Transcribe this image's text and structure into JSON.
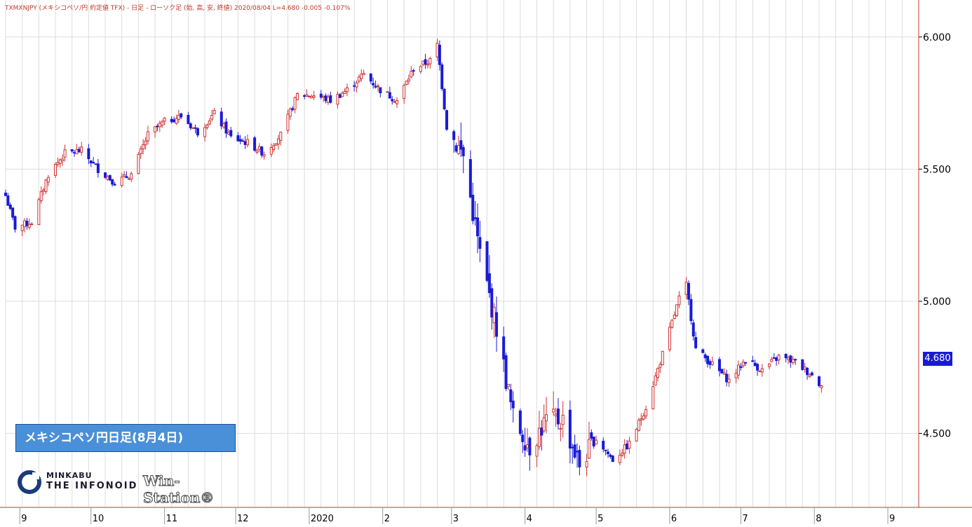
{
  "header": "TXMXNJPY (メキシコペソ/円 約定値 TFX) - 日足 - ローソク足 (始, 高, 安, 終値)  2020/08/04 L=4.680 -0.005  -0.107%",
  "badge_title": "メキシコペソ円日足(8月4日)",
  "logo": {
    "minkabu": "MINKABU",
    "infonoid": "THE INFONOID",
    "winstation": "Win-Station®",
    "icon": "minkabu-logo-icon"
  },
  "last_price_label": "4.680",
  "colors": {
    "up": "#d03030",
    "down": "#1a1ad6",
    "grid": "#dddddd",
    "header": "#c0392b"
  },
  "chart_data": {
    "type": "candlestick",
    "title": "",
    "xlabel": "",
    "ylabel": "",
    "ylim": [
      4.22,
      6.14
    ],
    "yticks": [
      "6.000",
      "5.500",
      "5.000",
      "4.500"
    ],
    "ytick_values": [
      6.0,
      5.5,
      5.0,
      4.5
    ],
    "x_range": [
      "2019-08-26",
      "2020-09-14"
    ],
    "xticks": [
      {
        "date": "2019-09-01",
        "label": "9"
      },
      {
        "date": "2019-10-01",
        "label": "10"
      },
      {
        "date": "2019-11-01",
        "label": "11"
      },
      {
        "date": "2019-12-01",
        "label": "12"
      },
      {
        "date": "2020-01-01",
        "label": "2020"
      },
      {
        "date": "2020-02-01",
        "label": "2"
      },
      {
        "date": "2020-03-01",
        "label": "3"
      },
      {
        "date": "2020-04-01",
        "label": "4"
      },
      {
        "date": "2020-05-01",
        "label": "5"
      },
      {
        "date": "2020-06-01",
        "label": "6"
      },
      {
        "date": "2020-07-01",
        "label": "7"
      },
      {
        "date": "2020-08-01",
        "label": "8"
      },
      {
        "date": "2020-09-01",
        "label": "9"
      }
    ],
    "grid": true,
    "close_anchors": [
      [
        "2019-08-26",
        5.4
      ],
      [
        "2019-08-30",
        5.28
      ],
      [
        "2019-09-06",
        5.3
      ],
      [
        "2019-09-13",
        5.48
      ],
      [
        "2019-09-20",
        5.56
      ],
      [
        "2019-09-27",
        5.57
      ],
      [
        "2019-10-04",
        5.5
      ],
      [
        "2019-10-11",
        5.45
      ],
      [
        "2019-10-18",
        5.48
      ],
      [
        "2019-10-25",
        5.63
      ],
      [
        "2019-11-01",
        5.68
      ],
      [
        "2019-11-08",
        5.7
      ],
      [
        "2019-11-15",
        5.64
      ],
      [
        "2019-11-22",
        5.71
      ],
      [
        "2019-11-29",
        5.62
      ],
      [
        "2019-12-06",
        5.6
      ],
      [
        "2019-12-13",
        5.56
      ],
      [
        "2019-12-20",
        5.63
      ],
      [
        "2019-12-27",
        5.78
      ],
      [
        "2020-01-03",
        5.78
      ],
      [
        "2020-01-10",
        5.76
      ],
      [
        "2020-01-17",
        5.8
      ],
      [
        "2020-01-24",
        5.86
      ],
      [
        "2020-01-31",
        5.8
      ],
      [
        "2020-02-07",
        5.76
      ],
      [
        "2020-02-14",
        5.88
      ],
      [
        "2020-02-21",
        5.91
      ],
      [
        "2020-02-24",
        5.97
      ],
      [
        "2020-02-28",
        5.66
      ],
      [
        "2020-03-06",
        5.55
      ],
      [
        "2020-03-13",
        5.18
      ],
      [
        "2020-03-20",
        4.9
      ],
      [
        "2020-03-27",
        4.56
      ],
      [
        "2020-04-03",
        4.45
      ],
      [
        "2020-04-10",
        4.55
      ],
      [
        "2020-04-17",
        4.55
      ],
      [
        "2020-04-24",
        4.38
      ],
      [
        "2020-05-01",
        4.48
      ],
      [
        "2020-05-08",
        4.4
      ],
      [
        "2020-05-15",
        4.46
      ],
      [
        "2020-05-22",
        4.6
      ],
      [
        "2020-05-29",
        4.8
      ],
      [
        "2020-06-05",
        5.01
      ],
      [
        "2020-06-08",
        5.06
      ],
      [
        "2020-06-12",
        4.82
      ],
      [
        "2020-06-19",
        4.76
      ],
      [
        "2020-06-26",
        4.7
      ],
      [
        "2020-07-03",
        4.78
      ],
      [
        "2020-07-10",
        4.74
      ],
      [
        "2020-07-17",
        4.79
      ],
      [
        "2020-07-24",
        4.77
      ],
      [
        "2020-07-31",
        4.72
      ],
      [
        "2020-08-04",
        4.68
      ]
    ],
    "last": {
      "date": "2020-08-04",
      "value": 4.68,
      "change": -0.005,
      "change_pct": -0.107
    }
  }
}
